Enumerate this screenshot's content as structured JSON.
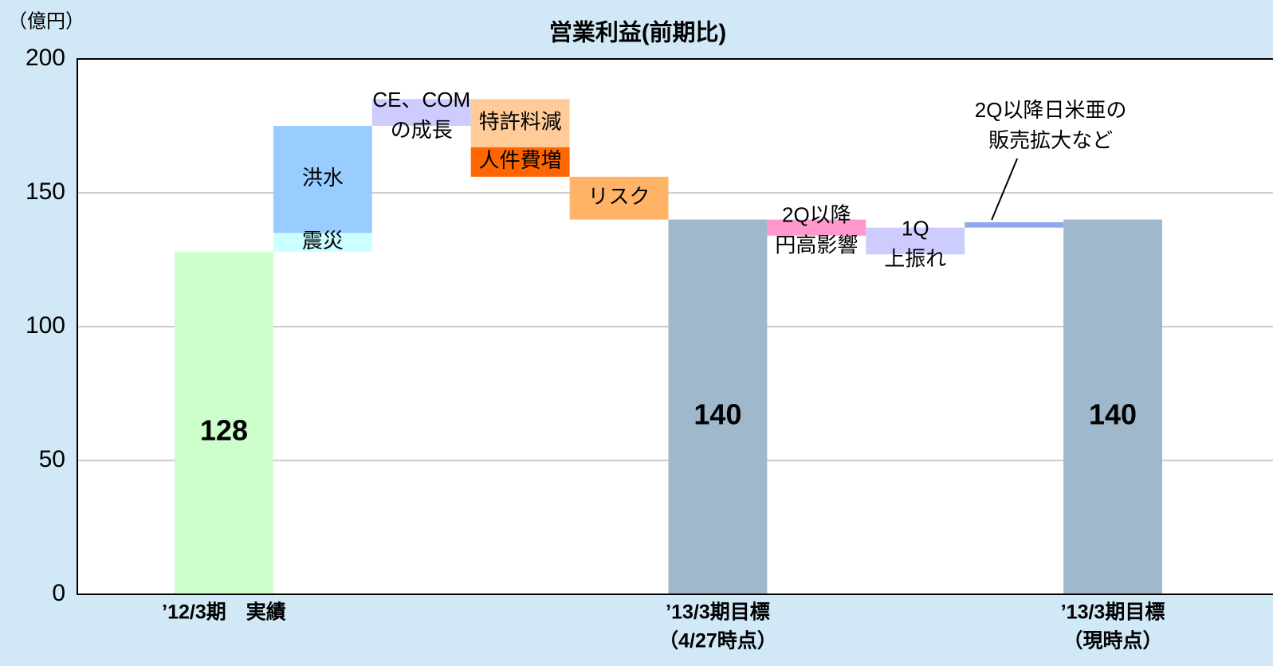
{
  "chart_data": {
    "type": "waterfall",
    "title": "営業利益(前期比)",
    "unit_label": "（億円）",
    "ylim": [
      0,
      200
    ],
    "yticks": [
      0,
      50,
      100,
      150,
      200
    ],
    "grid": true,
    "categories": [
      [
        "’12/3期　実績"
      ],
      null,
      null,
      null,
      null,
      [
        "’13/3期目標",
        "（4/27時点）"
      ],
      null,
      null,
      null,
      [
        "’13/3期目標",
        "（現時点）"
      ]
    ],
    "columns": [
      {
        "segments": [
          {
            "low": 0,
            "high": 128,
            "color": "#ccffcc",
            "total": true
          }
        ]
      },
      {
        "segments": [
          {
            "label": [
              "震災"
            ],
            "low": 128,
            "high": 135,
            "color": "#ccffff"
          },
          {
            "label": [
              "洪水"
            ],
            "low": 135,
            "high": 175,
            "color": "#99ccff"
          }
        ]
      },
      {
        "segments": [
          {
            "label": [
              "CE、COM",
              "の成長"
            ],
            "low": 175,
            "high": 185,
            "color": "#ccccff"
          }
        ]
      },
      {
        "segments": [
          {
            "label": [
              "特許料減"
            ],
            "low": 167,
            "high": 185,
            "color": "#ffcc99"
          },
          {
            "label": [
              "人件費増"
            ],
            "low": 156,
            "high": 167,
            "color": "#ff6600"
          }
        ]
      },
      {
        "segments": [
          {
            "label": [
              "リスク"
            ],
            "low": 140,
            "high": 156,
            "color": "#ffb366"
          }
        ]
      },
      {
        "segments": [
          {
            "low": 0,
            "high": 140,
            "color": "#9fb8cc",
            "total": true
          }
        ]
      },
      {
        "segments": [
          {
            "label": [
              "2Q以降",
              "円高影響"
            ],
            "low": 134,
            "high": 140,
            "color": "#ff99cc"
          }
        ]
      },
      {
        "segments": [
          {
            "label": [
              "1Q",
              "上振れ"
            ],
            "low": 127,
            "high": 137,
            "color": "#ccccff"
          }
        ]
      },
      {
        "segments": [
          {
            "annotation": [
              "2Q以降日米亜の",
              "販売拡大など"
            ],
            "low": 137,
            "high": 139,
            "color": "#8fa8ee"
          }
        ]
      },
      {
        "segments": [
          {
            "low": 0,
            "high": 140,
            "color": "#9fb8cc",
            "total": true
          }
        ]
      }
    ]
  }
}
